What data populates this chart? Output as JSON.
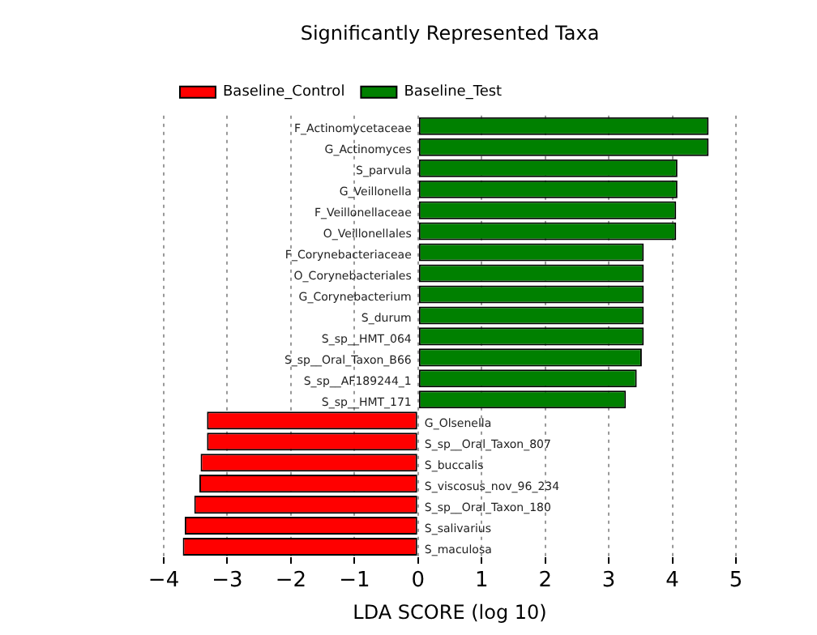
{
  "chart_data": {
    "type": "bar",
    "orientation": "horizontal",
    "stacked": true,
    "title": "Significantly Represented Taxa",
    "xlabel": "LDA SCORE (log 10)",
    "categories": [
      "F_Actinomycetaceae",
      "G_Actinomyces",
      "S_parvula",
      "G_Veillonella",
      "F_Veillonellaceae",
      "O_Veillonellales",
      "F_Corynebacteriaceae",
      "O_Corynebacteriales",
      "G_Corynebacterium",
      "S_durum",
      "S_sp__HMT_064",
      "S_sp__Oral_Taxon_B66",
      "S_sp__AF189244_1",
      "S_sp__HMT_171",
      "G_Olsenella",
      "S_sp__Oral_Taxon_807",
      "S_buccalis",
      "S_viscosus_nov_96_234",
      "S_sp__Oral_Taxon_180",
      "S_salivarius",
      "S_maculosa"
    ],
    "series": [
      {
        "name": "Baseline_Control",
        "color": "#ff0000",
        "values": [
          null,
          null,
          null,
          null,
          null,
          null,
          null,
          null,
          null,
          null,
          null,
          null,
          null,
          null,
          -3.32,
          -3.32,
          -3.42,
          -3.44,
          -3.52,
          -3.67,
          -3.7
        ]
      },
      {
        "name": "Baseline_Test",
        "color": "#008000",
        "values": [
          4.57,
          4.57,
          4.08,
          4.08,
          4.06,
          4.06,
          3.55,
          3.55,
          3.55,
          3.55,
          3.55,
          3.52,
          3.44,
          3.27,
          null,
          null,
          null,
          null,
          null,
          null,
          null
        ]
      }
    ],
    "xlim": [
      -4,
      5
    ],
    "xticks": [
      {
        "value": -4,
        "label": "−4"
      },
      {
        "value": -3,
        "label": "−3"
      },
      {
        "value": -2,
        "label": "−2"
      },
      {
        "value": -1,
        "label": "−1"
      },
      0,
      1,
      2,
      3,
      4,
      5
    ],
    "grid": "x",
    "legend": "top left"
  }
}
